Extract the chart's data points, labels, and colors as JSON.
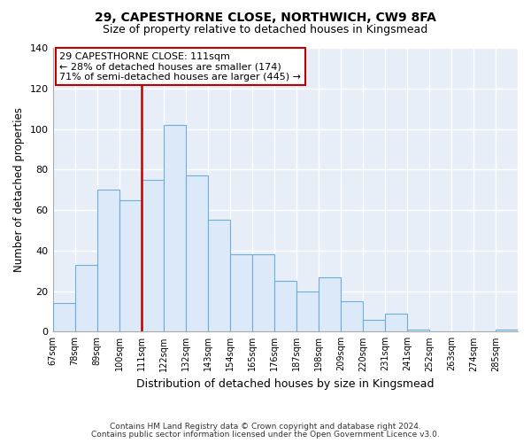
{
  "title1": "29, CAPESTHORNE CLOSE, NORTHWICH, CW9 8FA",
  "title2": "Size of property relative to detached houses in Kingsmead",
  "xlabel": "Distribution of detached houses by size in Kingsmead",
  "ylabel": "Number of detached properties",
  "footnote1": "Contains HM Land Registry data © Crown copyright and database right 2024.",
  "footnote2": "Contains public sector information licensed under the Open Government Licence v3.0.",
  "bin_labels": [
    "67sqm",
    "78sqm",
    "89sqm",
    "100sqm",
    "111sqm",
    "122sqm",
    "132sqm",
    "143sqm",
    "154sqm",
    "165sqm",
    "176sqm",
    "187sqm",
    "198sqm",
    "209sqm",
    "220sqm",
    "231sqm",
    "241sqm",
    "252sqm",
    "263sqm",
    "274sqm",
    "285sqm"
  ],
  "bar_heights": [
    14,
    33,
    70,
    65,
    75,
    102,
    77,
    55,
    38,
    38,
    25,
    20,
    27,
    15,
    6,
    9,
    1,
    0,
    0,
    0,
    1
  ],
  "property_line_x": 4,
  "property_line_label": "29 CAPESTHORNE CLOSE: 111sqm",
  "annotation_line1": "← 28% of detached houses are smaller (174)",
  "annotation_line2": "71% of semi-detached houses are larger (445) →",
  "bar_color": "#dce9f8",
  "bar_edge_color": "#6baed6",
  "property_line_color": "#c00000",
  "annotation_box_edge_color": "#c00000",
  "ylim": [
    0,
    140
  ],
  "yticks": [
    0,
    20,
    40,
    60,
    80,
    100,
    120,
    140
  ],
  "background_color": "#ffffff",
  "plot_bg_color": "#e8eef8"
}
